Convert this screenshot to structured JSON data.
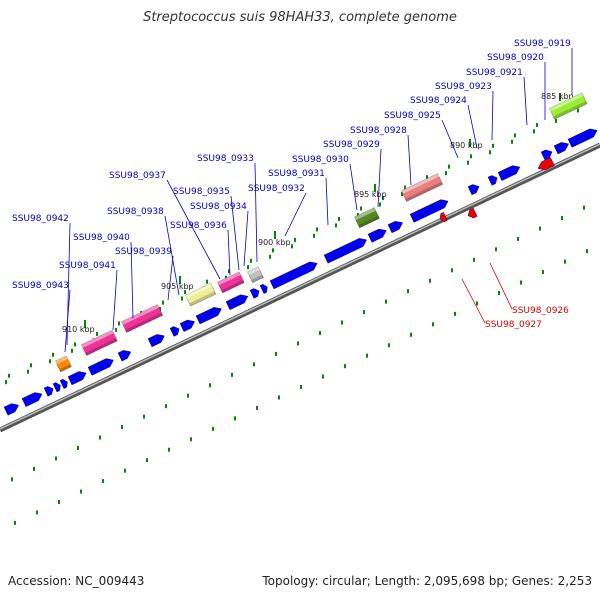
{
  "title": "Streptococcus suis 98HAH33, complete genome",
  "footer": {
    "accession": "Accession: NC_009443",
    "summary": "Topology: circular; Length: 2,095,698 bp; Genes: 2,253"
  },
  "colors": {
    "backbone": "#808080",
    "cds_forward": "#0000ee",
    "cds_reverse": "#ee0000",
    "tick": "#008800",
    "label_forward": "#0000cc",
    "label_reverse": "#dd0000"
  },
  "ticks": [
    {
      "label": "885 kbp"
    },
    {
      "label": "890 kbp"
    },
    {
      "label": "895 kbp"
    },
    {
      "label": "900 kbp"
    },
    {
      "label": "905 kbp"
    },
    {
      "label": "910 kbp"
    }
  ],
  "highlight_genes": [
    {
      "name": "SSU98_0919",
      "color": "#99ee33"
    },
    {
      "name": "SSU98_0928",
      "color": "#e88080"
    },
    {
      "name": "SSU98_0930",
      "color": "#558822"
    },
    {
      "name": "SSU98_0933",
      "color": "#c0c0c0"
    },
    {
      "name": "SSU98_0935",
      "color": "#ee3399"
    },
    {
      "name": "SSU98_0937",
      "color": "#eeee99"
    },
    {
      "name": "SSU98_0940",
      "color": "#ee3399"
    },
    {
      "name": "SSU98_0941",
      "color": "#ee3399"
    },
    {
      "name": "SSU98_0943",
      "color": "#ff8800"
    }
  ],
  "gene_labels": [
    {
      "name": "SSU98_0919",
      "strand": "forward"
    },
    {
      "name": "SSU98_0920",
      "strand": "forward"
    },
    {
      "name": "SSU98_0921",
      "strand": "forward"
    },
    {
      "name": "SSU98_0923",
      "strand": "forward"
    },
    {
      "name": "SSU98_0924",
      "strand": "forward"
    },
    {
      "name": "SSU98_0925",
      "strand": "forward"
    },
    {
      "name": "SSU98_0928",
      "strand": "forward"
    },
    {
      "name": "SSU98_0929",
      "strand": "forward"
    },
    {
      "name": "SSU98_0930",
      "strand": "forward"
    },
    {
      "name": "SSU98_0931",
      "strand": "forward"
    },
    {
      "name": "SSU98_0932",
      "strand": "forward"
    },
    {
      "name": "SSU98_0933",
      "strand": "forward"
    },
    {
      "name": "SSU98_0934",
      "strand": "forward"
    },
    {
      "name": "SSU98_0935",
      "strand": "forward"
    },
    {
      "name": "SSU98_0936",
      "strand": "forward"
    },
    {
      "name": "SSU98_0937",
      "strand": "forward"
    },
    {
      "name": "SSU98_0938",
      "strand": "forward"
    },
    {
      "name": "SSU98_0939",
      "strand": "forward"
    },
    {
      "name": "SSU98_0940",
      "strand": "forward"
    },
    {
      "name": "SSU98_0941",
      "strand": "forward"
    },
    {
      "name": "SSU98_0942",
      "strand": "forward"
    },
    {
      "name": "SSU98_0943",
      "strand": "forward"
    },
    {
      "name": "SSU98_0926",
      "strand": "reverse"
    },
    {
      "name": "SSU98_0927",
      "strand": "reverse"
    }
  ]
}
